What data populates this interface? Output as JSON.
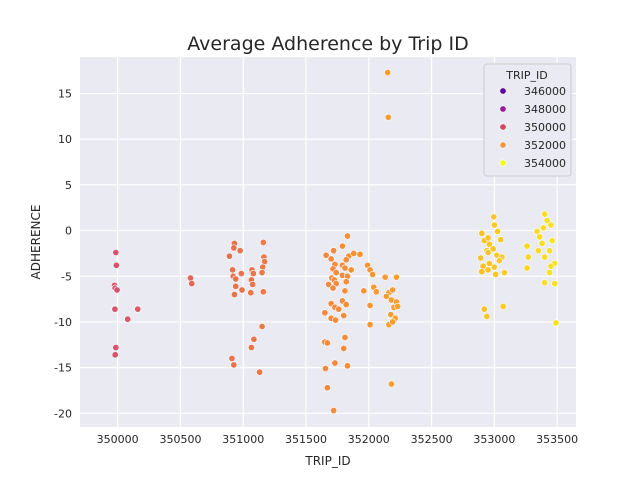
{
  "chart_data": {
    "type": "scatter",
    "title": "Average Adherence by Trip ID",
    "xlabel": "TRIP_ID",
    "ylabel": "ADHERENCE",
    "xlim": [
      349700,
      353650
    ],
    "ylim": [
      -21.5,
      19
    ],
    "xticks": [
      350000,
      350500,
      351000,
      351500,
      352000,
      352500,
      353000,
      353500
    ],
    "yticks": [
      -20,
      -15,
      -10,
      -5,
      0,
      5,
      10,
      15
    ],
    "grid": true,
    "background": "#eaeaf2",
    "legend": {
      "title": "TRIP_ID",
      "position": "top-right",
      "entries": [
        {
          "label": "346000",
          "color": "#5b02a3"
        },
        {
          "label": "348000",
          "color": "#9b179e"
        },
        {
          "label": "350000",
          "color": "#d0485f"
        },
        {
          "label": "352000",
          "color": "#f69541"
        },
        {
          "label": "354000",
          "color": "#f0f921"
        }
      ]
    },
    "colormap": {
      "min": 349950,
      "max": 353550,
      "stops": [
        "#d5536f",
        "#e57050",
        "#f58b3c",
        "#f9b22a",
        "#f7e723"
      ]
    },
    "points": [
      [
        349985,
        -2.4
      ],
      [
        349990,
        -3.8
      ],
      [
        349975,
        -6.0
      ],
      [
        349980,
        -6.3
      ],
      [
        349995,
        -6.5
      ],
      [
        349978,
        -8.6
      ],
      [
        349985,
        -12.8
      ],
      [
        349980,
        -13.6
      ],
      [
        350080,
        -9.7
      ],
      [
        350160,
        -8.6
      ],
      [
        350580,
        -5.2
      ],
      [
        350590,
        -5.8
      ],
      [
        350930,
        -1.4
      ],
      [
        350925,
        -1.9
      ],
      [
        350975,
        -2.2
      ],
      [
        350890,
        -2.8
      ],
      [
        350915,
        -4.3
      ],
      [
        350920,
        -5.0
      ],
      [
        350940,
        -5.3
      ],
      [
        350985,
        -4.7
      ],
      [
        350990,
        -6.5
      ],
      [
        350930,
        -7.0
      ],
      [
        350940,
        -6.1
      ],
      [
        350910,
        -14.0
      ],
      [
        350925,
        -14.7
      ],
      [
        351070,
        -4.3
      ],
      [
        351080,
        -4.7
      ],
      [
        351065,
        -5.4
      ],
      [
        351075,
        -5.9
      ],
      [
        351060,
        -6.8
      ],
      [
        351085,
        -11.9
      ],
      [
        351065,
        -12.8
      ],
      [
        351130,
        -15.5
      ],
      [
        351160,
        -1.3
      ],
      [
        351165,
        -2.9
      ],
      [
        351170,
        -3.4
      ],
      [
        351155,
        -4.0
      ],
      [
        351150,
        -4.6
      ],
      [
        351160,
        -6.7
      ],
      [
        351150,
        -10.5
      ],
      [
        351660,
        -2.7
      ],
      [
        351720,
        -2.2
      ],
      [
        351700,
        -3.1
      ],
      [
        351730,
        -3.7
      ],
      [
        351715,
        -4.2
      ],
      [
        351740,
        -4.6
      ],
      [
        351705,
        -5.2
      ],
      [
        351725,
        -5.4
      ],
      [
        351680,
        -5.9
      ],
      [
        351740,
        -5.8
      ],
      [
        351715,
        -6.3
      ],
      [
        351650,
        -9.0
      ],
      [
        351700,
        -8.0
      ],
      [
        351730,
        -8.4
      ],
      [
        351760,
        -8.6
      ],
      [
        351700,
        -9.6
      ],
      [
        351735,
        -9.8
      ],
      [
        351650,
        -12.2
      ],
      [
        351670,
        -12.3
      ],
      [
        351655,
        -15.1
      ],
      [
        351670,
        -17.2
      ],
      [
        351730,
        -14.5
      ],
      [
        351720,
        -19.7
      ],
      [
        351830,
        -0.6
      ],
      [
        351790,
        -1.7
      ],
      [
        351840,
        -2.8
      ],
      [
        351880,
        -2.5
      ],
      [
        351820,
        -3.2
      ],
      [
        351790,
        -3.8
      ],
      [
        351810,
        -4.1
      ],
      [
        351860,
        -4.3
      ],
      [
        351790,
        -4.9
      ],
      [
        351830,
        -5.0
      ],
      [
        351820,
        -5.6
      ],
      [
        351810,
        -6.6
      ],
      [
        351790,
        -7.7
      ],
      [
        351820,
        -8.1
      ],
      [
        351800,
        -9.3
      ],
      [
        351810,
        -11.7
      ],
      [
        351800,
        -12.9
      ],
      [
        351830,
        -14.8
      ],
      [
        351930,
        -2.6
      ],
      [
        351990,
        -3.8
      ],
      [
        352010,
        -4.3
      ],
      [
        352030,
        -4.8
      ],
      [
        351960,
        -6.6
      ],
      [
        352040,
        -6.2
      ],
      [
        352060,
        -6.7
      ],
      [
        352010,
        -8.2
      ],
      [
        352010,
        -10.3
      ],
      [
        352150,
        17.3
      ],
      [
        352155,
        12.4
      ],
      [
        352130,
        -5.1
      ],
      [
        352160,
        -6.8
      ],
      [
        352190,
        -6.5
      ],
      [
        352220,
        -5.1
      ],
      [
        352140,
        -7.2
      ],
      [
        352180,
        -7.6
      ],
      [
        352200,
        -8.4
      ],
      [
        352220,
        -7.8
      ],
      [
        352230,
        -8.3
      ],
      [
        352175,
        -9.2
      ],
      [
        352210,
        -9.6
      ],
      [
        352160,
        -10.3
      ],
      [
        352190,
        -10.0
      ],
      [
        352180,
        -16.8
      ],
      [
        352900,
        -0.3
      ],
      [
        352920,
        -1.1
      ],
      [
        352950,
        -0.8
      ],
      [
        352960,
        -1.5
      ],
      [
        352995,
        1.5
      ],
      [
        353000,
        0.6
      ],
      [
        353025,
        -0.1
      ],
      [
        353050,
        -1.0
      ],
      [
        352940,
        -2.2
      ],
      [
        352890,
        -3.0
      ],
      [
        352950,
        -2.4
      ],
      [
        352990,
        -2.0
      ],
      [
        353020,
        -2.7
      ],
      [
        353060,
        -2.9
      ],
      [
        352910,
        -3.9
      ],
      [
        352960,
        -3.6
      ],
      [
        353000,
        -4.0
      ],
      [
        353040,
        -3.3
      ],
      [
        352900,
        -4.5
      ],
      [
        352950,
        -4.3
      ],
      [
        353010,
        -4.8
      ],
      [
        353080,
        -4.6
      ],
      [
        352920,
        -8.6
      ],
      [
        352940,
        -9.4
      ],
      [
        353070,
        -8.3
      ],
      [
        353260,
        -1.7
      ],
      [
        353270,
        -2.9
      ],
      [
        353260,
        -4.1
      ],
      [
        353340,
        -0.1
      ],
      [
        353360,
        -0.7
      ],
      [
        353380,
        -1.4
      ],
      [
        353400,
        1.8
      ],
      [
        353420,
        1.1
      ],
      [
        353390,
        0.3
      ],
      [
        353350,
        -2.2
      ],
      [
        353400,
        -2.9
      ],
      [
        353440,
        -2.2
      ],
      [
        353460,
        -1.1
      ],
      [
        353450,
        0.6
      ],
      [
        353480,
        -3.6
      ],
      [
        353450,
        -3.9
      ],
      [
        353440,
        -4.6
      ],
      [
        353400,
        -5.7
      ],
      [
        353480,
        -5.8
      ],
      [
        353490,
        -10.1
      ]
    ]
  }
}
